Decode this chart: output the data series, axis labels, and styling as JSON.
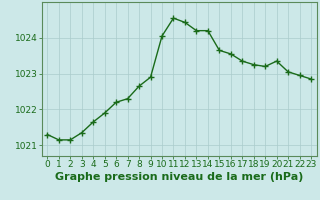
{
  "x": [
    0,
    1,
    2,
    3,
    4,
    5,
    6,
    7,
    8,
    9,
    10,
    11,
    12,
    13,
    14,
    15,
    16,
    17,
    18,
    19,
    20,
    21,
    22,
    23
  ],
  "y": [
    1021.3,
    1021.15,
    1021.15,
    1021.35,
    1021.65,
    1021.9,
    1022.2,
    1022.3,
    1022.65,
    1022.9,
    1024.05,
    1024.55,
    1024.43,
    1024.2,
    1024.2,
    1023.65,
    1023.55,
    1023.35,
    1023.25,
    1023.2,
    1023.35,
    1023.05,
    1022.95,
    1022.85
  ],
  "line_color": "#1a6b1a",
  "marker_color": "#1a6b1a",
  "bg_color": "#cce8e8",
  "grid_color": "#aacccc",
  "xlabel": "Graphe pression niveau de la mer (hPa)",
  "xlabel_color": "#1a6b1a",
  "xlim": [
    -0.5,
    23.5
  ],
  "ylim": [
    1020.7,
    1025.0
  ],
  "yticks": [
    1021,
    1022,
    1023,
    1024
  ],
  "xticks": [
    0,
    1,
    2,
    3,
    4,
    5,
    6,
    7,
    8,
    9,
    10,
    11,
    12,
    13,
    14,
    15,
    16,
    17,
    18,
    19,
    20,
    21,
    22,
    23
  ],
  "tick_color": "#1a6b1a",
  "spine_color": "#5a8a5a",
  "marker_size": 4,
  "line_width": 1.0,
  "xlabel_fontsize": 8,
  "tick_fontsize": 6.5
}
